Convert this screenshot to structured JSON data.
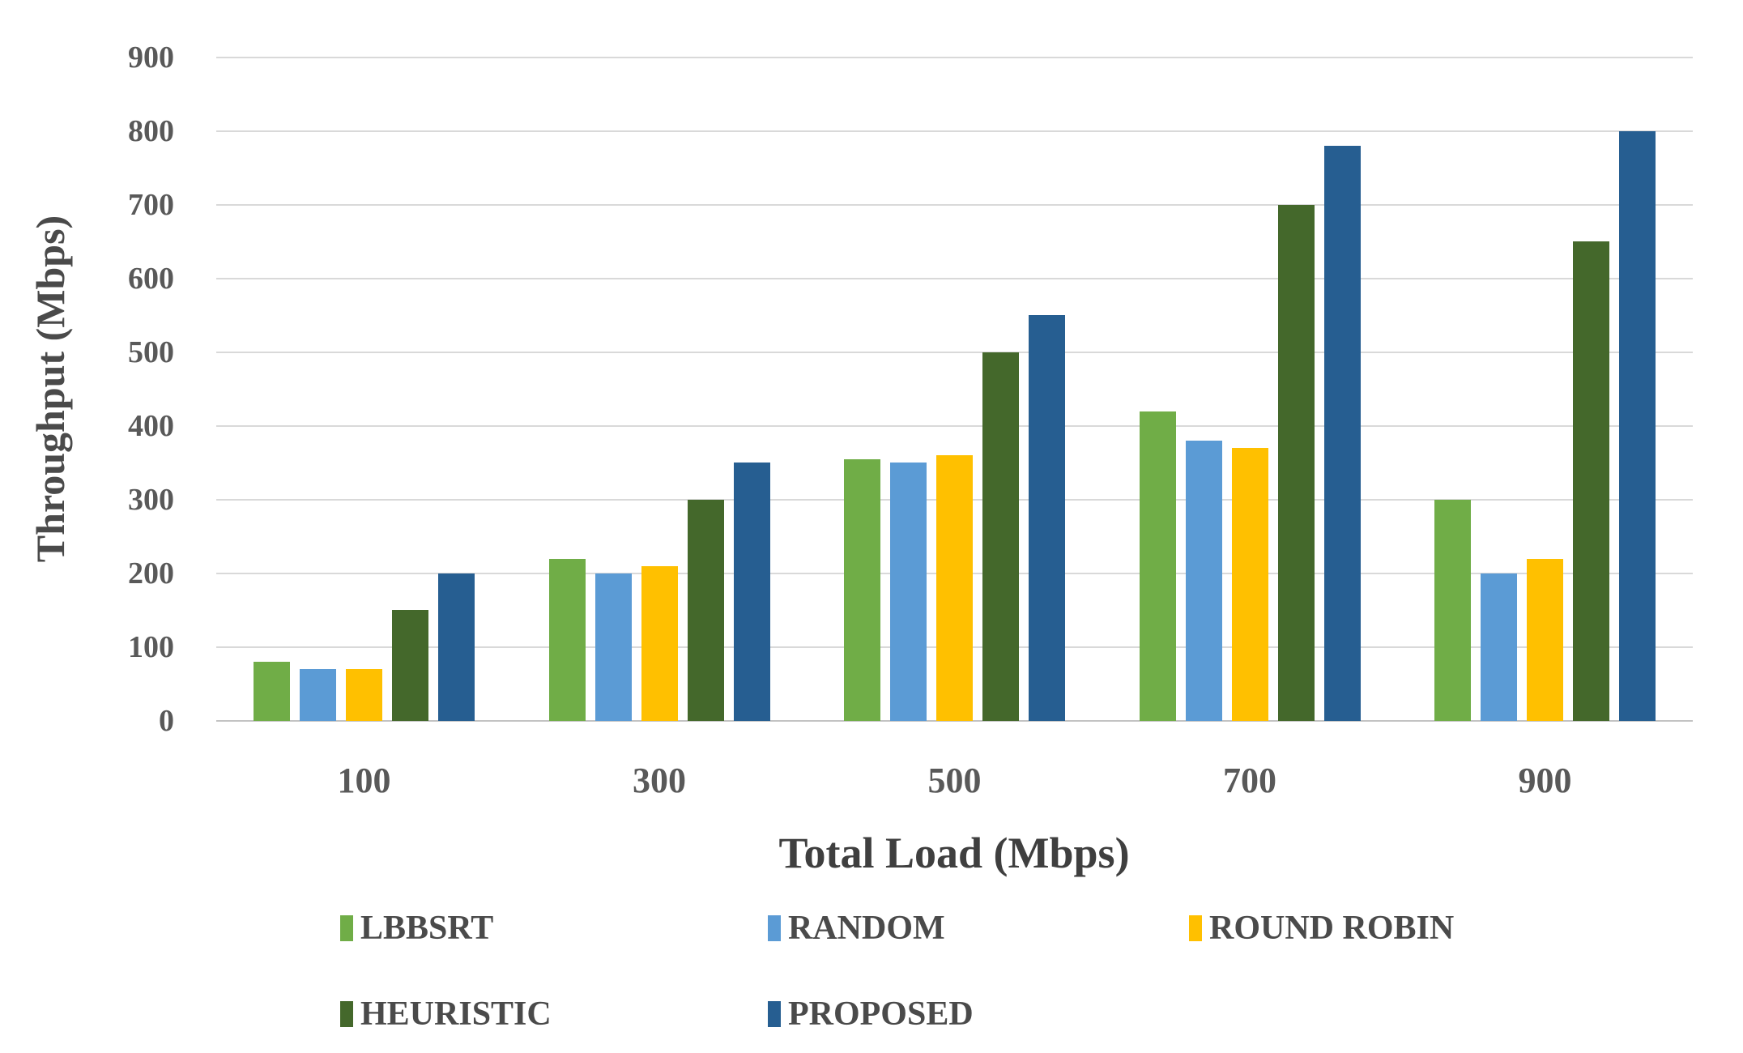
{
  "chart_data": {
    "type": "bar",
    "title": "",
    "xlabel": "Total Load (Mbps)",
    "ylabel": "Throughput (Mbps)",
    "categories": [
      "100",
      "300",
      "500",
      "700",
      "900"
    ],
    "series": [
      {
        "name": "LBBSRT",
        "color": "#70AD47",
        "values": [
          80,
          220,
          355,
          420,
          300
        ]
      },
      {
        "name": "RANDOM",
        "color": "#5B9BD5",
        "values": [
          70,
          200,
          350,
          380,
          200
        ]
      },
      {
        "name": "ROUND ROBIN",
        "color": "#FFC000",
        "values": [
          70,
          210,
          360,
          370,
          220
        ]
      },
      {
        "name": "HEURISTIC",
        "color": "#44682B",
        "values": [
          150,
          300,
          500,
          700,
          650
        ]
      },
      {
        "name": "PROPOSED",
        "color": "#265E91",
        "values": [
          200,
          350,
          550,
          780,
          800
        ]
      }
    ],
    "ylim": [
      0,
      900
    ],
    "ytick_step": 100,
    "yticks": [
      0,
      100,
      200,
      300,
      400,
      500,
      600,
      700,
      800,
      900
    ],
    "grid": "horizontal",
    "legend_position": "bottom",
    "colors": {
      "gridline": "#D9D9D9",
      "axis_line": "#C3C3C3",
      "tick_label": "#595959",
      "axis_title": "#3F3F3F",
      "background": "#FFFFFF"
    }
  }
}
